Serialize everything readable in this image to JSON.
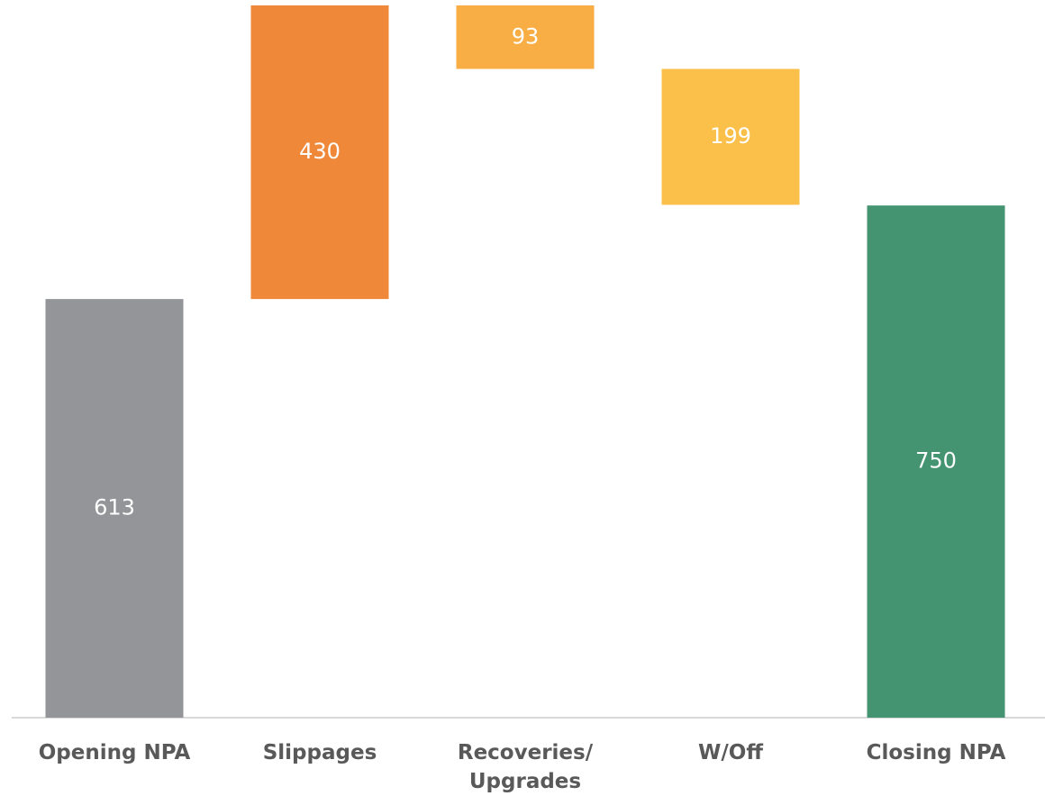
{
  "chart_data": {
    "type": "waterfall",
    "categories": [
      "Opening NPA",
      "Slippages",
      "Recoveries/ Upgrades",
      "W/Off",
      "Closing NPA"
    ],
    "values": [
      613,
      430,
      -93,
      -199,
      750
    ],
    "value_labels": [
      "613",
      "430",
      "93",
      "199",
      "750"
    ],
    "is_total": [
      true,
      false,
      false,
      false,
      true
    ],
    "colors": [
      "#939598",
      "#f0883a",
      "#f8ae45",
      "#fbc04a",
      "#449371"
    ]
  }
}
